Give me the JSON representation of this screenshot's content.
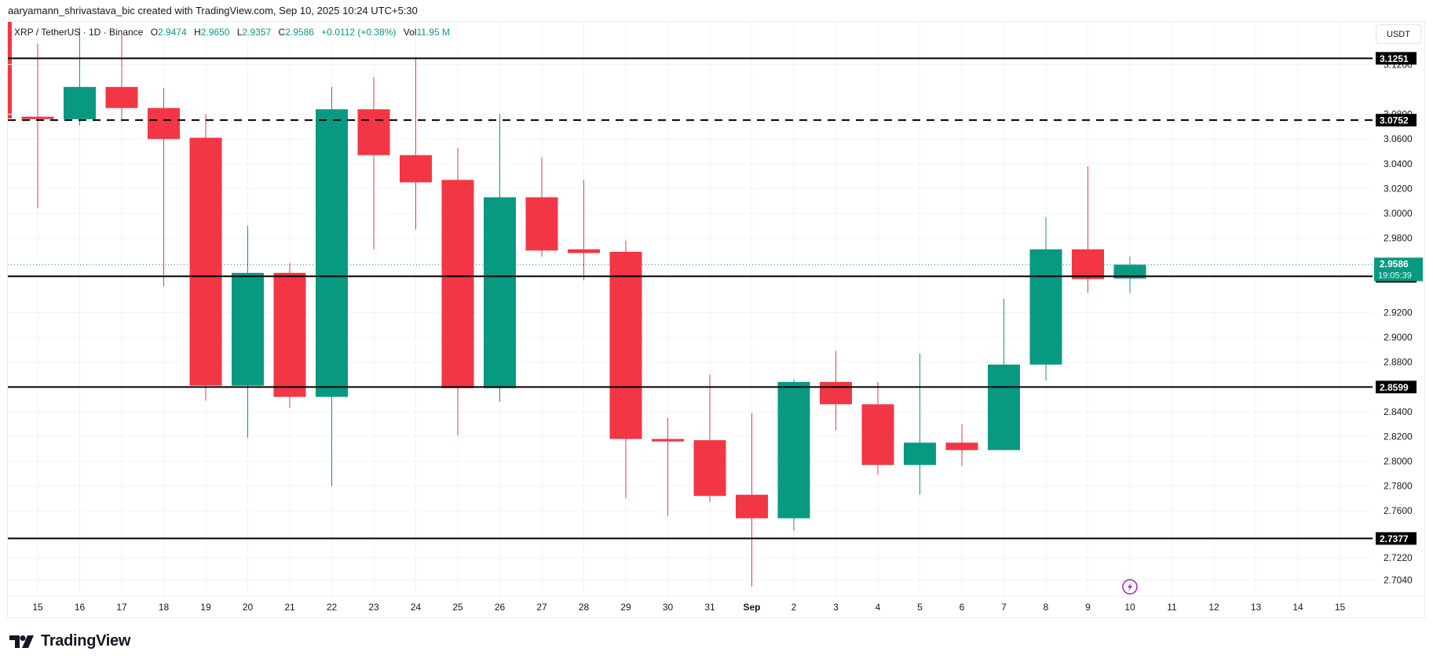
{
  "credit": "aaryamann_shrivastava_bic created with TradingView.com, Sep 10, 2025 10:24 UTC+5:30",
  "legend": {
    "symbol": "XRP / TetherUS",
    "interval": "1D",
    "exchange": "Binance",
    "open_label": "O",
    "open": "2.9474",
    "high_label": "H",
    "high": "2.9650",
    "low_label": "L",
    "low": "2.9357",
    "close_label": "C",
    "close": "2.9586",
    "change": "+0.0112 (+0.38%)",
    "vol_label": "Vol",
    "vol": "11.95 M"
  },
  "currency_button": "USDT",
  "last_price": {
    "price": "2.9586",
    "countdown": "19:05:39",
    "color": "#089981"
  },
  "colors": {
    "up": "#089981",
    "down": "#f23645",
    "grid": "#f0f3fa",
    "line": "#000000"
  },
  "logo_text": "TradingView",
  "chart_data": {
    "type": "candlestick",
    "title": "XRP / TetherUS · 1D · Binance",
    "xlabel": "",
    "ylabel": "USDT",
    "ylim": [
      2.69,
      3.14
    ],
    "grid": true,
    "x_ticks": [
      "15",
      "16",
      "17",
      "18",
      "19",
      "20",
      "21",
      "22",
      "23",
      "24",
      "25",
      "26",
      "27",
      "28",
      "29",
      "30",
      "31",
      "Sep",
      "2",
      "3",
      "4",
      "5",
      "6",
      "7",
      "8",
      "9",
      "10",
      "11",
      "12",
      "13",
      "14",
      "15"
    ],
    "y_ticks": [
      "3.1200",
      "3.0800",
      "3.0600",
      "3.0400",
      "3.0200",
      "3.0000",
      "2.9800",
      "2.9200",
      "2.9000",
      "2.8800",
      "2.8400",
      "2.8200",
      "2.8000",
      "2.7800",
      "2.7600",
      "2.7220",
      "2.7040"
    ],
    "candles": [
      {
        "date": "Aug 15",
        "o": 3.078,
        "h": 3.137,
        "l": 3.004,
        "c": 3.077
      },
      {
        "date": "Aug 16",
        "o": 3.076,
        "h": 3.15,
        "l": 3.071,
        "c": 3.102
      },
      {
        "date": "Aug 17",
        "o": 3.102,
        "h": 3.147,
        "l": 3.076,
        "c": 3.085
      },
      {
        "date": "Aug 18",
        "o": 3.085,
        "h": 3.101,
        "l": 2.941,
        "c": 3.06
      },
      {
        "date": "Aug 19",
        "o": 3.061,
        "h": 3.08,
        "l": 2.849,
        "c": 2.861
      },
      {
        "date": "Aug 20",
        "o": 2.861,
        "h": 2.99,
        "l": 2.819,
        "c": 2.952
      },
      {
        "date": "Aug 21",
        "o": 2.952,
        "h": 2.96,
        "l": 2.843,
        "c": 2.852
      },
      {
        "date": "Aug 22",
        "o": 2.852,
        "h": 3.102,
        "l": 2.78,
        "c": 3.084
      },
      {
        "date": "Aug 23",
        "o": 3.084,
        "h": 3.11,
        "l": 2.971,
        "c": 3.047
      },
      {
        "date": "Aug 24",
        "o": 3.047,
        "h": 3.126,
        "l": 2.987,
        "c": 3.025
      },
      {
        "date": "Aug 25",
        "o": 3.027,
        "h": 3.053,
        "l": 2.821,
        "c": 2.859
      },
      {
        "date": "Aug 26",
        "o": 2.859,
        "h": 3.08,
        "l": 2.848,
        "c": 3.013
      },
      {
        "date": "Aug 27",
        "o": 3.013,
        "h": 3.045,
        "l": 2.965,
        "c": 2.97
      },
      {
        "date": "Aug 28",
        "o": 2.971,
        "h": 3.027,
        "l": 2.946,
        "c": 2.968
      },
      {
        "date": "Aug 29",
        "o": 2.969,
        "h": 2.978,
        "l": 2.77,
        "c": 2.818
      },
      {
        "date": "Aug 30",
        "o": 2.818,
        "h": 2.835,
        "l": 2.756,
        "c": 2.816
      },
      {
        "date": "Aug 31",
        "o": 2.817,
        "h": 2.87,
        "l": 2.767,
        "c": 2.772
      },
      {
        "date": "Sep 1",
        "o": 2.773,
        "h": 2.839,
        "l": 2.699,
        "c": 2.754
      },
      {
        "date": "Sep 2",
        "o": 2.754,
        "h": 2.866,
        "l": 2.744,
        "c": 2.864
      },
      {
        "date": "Sep 3",
        "o": 2.864,
        "h": 2.889,
        "l": 2.825,
        "c": 2.846
      },
      {
        "date": "Sep 4",
        "o": 2.846,
        "h": 2.864,
        "l": 2.789,
        "c": 2.797
      },
      {
        "date": "Sep 5",
        "o": 2.797,
        "h": 2.887,
        "l": 2.773,
        "c": 2.815
      },
      {
        "date": "Sep 6",
        "o": 2.815,
        "h": 2.83,
        "l": 2.796,
        "c": 2.809
      },
      {
        "date": "Sep 7",
        "o": 2.809,
        "h": 2.931,
        "l": 2.809,
        "c": 2.878
      },
      {
        "date": "Sep 8",
        "o": 2.878,
        "h": 2.997,
        "l": 2.865,
        "c": 2.971
      },
      {
        "date": "Sep 9",
        "o": 2.971,
        "h": 3.038,
        "l": 2.936,
        "c": 2.947
      },
      {
        "date": "Sep 10",
        "o": 2.9474,
        "h": 2.965,
        "l": 2.9357,
        "c": 2.9586
      }
    ],
    "horizontal_lines": [
      {
        "price": 3.1251,
        "label": "3.1251",
        "style": "solid"
      },
      {
        "price": 3.0752,
        "label": "3.0752",
        "style": "dashed"
      },
      {
        "price": 2.9492,
        "label": "2.9492",
        "style": "solid"
      },
      {
        "price": 2.8599,
        "label": "2.8599",
        "style": "solid"
      },
      {
        "price": 2.7377,
        "label": "2.7377",
        "style": "solid"
      }
    ],
    "last_price_line": {
      "price": 2.9586,
      "style": "dotted"
    }
  }
}
